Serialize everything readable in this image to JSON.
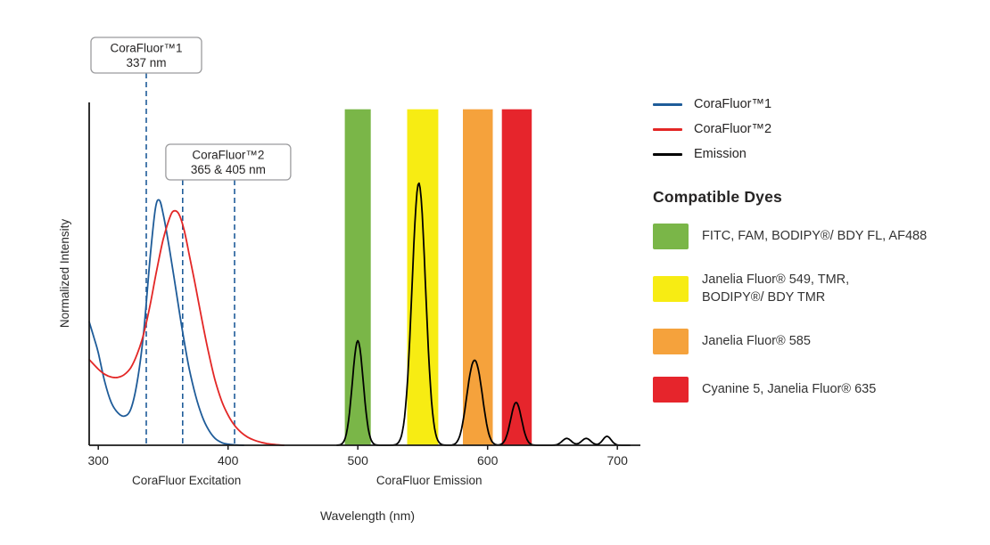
{
  "legend": {
    "items": [
      {
        "label": "CoraFluor™1",
        "color": "#1f5c99"
      },
      {
        "label": "CoraFluor™2",
        "color": "#e32726"
      },
      {
        "label": "Emission",
        "color": "#000000"
      }
    ]
  },
  "compatible_dyes": {
    "heading": "Compatible Dyes",
    "items": [
      {
        "color": "#7ab648",
        "label": "FITC, FAM, BODIPY®/ BDY FL, AF488"
      },
      {
        "color": "#f7ec13",
        "label": "Janelia Fluor® 549, TMR,\nBODIPY®/ BDY TMR"
      },
      {
        "color": "#f5a23c",
        "label": "Janelia Fluor® 585"
      },
      {
        "color": "#e6252c",
        "label": "Cyanine 5, Janelia Fluor® 635"
      }
    ]
  },
  "chart_data": {
    "type": "line",
    "title": "",
    "xlabel": "Wavelength (nm)",
    "ylabel": "Normalized Intensity",
    "xlim": [
      293,
      715
    ],
    "ylim": [
      0,
      1
    ],
    "grid": false,
    "x_ticks": [
      300,
      400,
      500,
      600,
      700
    ],
    "section_labels": [
      {
        "label": "CoraFluor Excitation",
        "center_nm": 368
      },
      {
        "label": "CoraFluor Emission",
        "center_nm": 555
      }
    ],
    "annotations": [
      {
        "line1": "CoraFluor™1",
        "line2": "337 nm",
        "lines_nm": [
          337
        ]
      },
      {
        "line1": "CoraFluor™2",
        "line2": "365 & 405 nm",
        "lines_nm": [
          365,
          405
        ]
      }
    ],
    "annotation_line_color": "#1f5c99",
    "bands": [
      {
        "name": "green",
        "range": [
          490,
          510
        ],
        "color": "#7ab648"
      },
      {
        "name": "yellow",
        "range": [
          538,
          562
        ],
        "color": "#f7ec13"
      },
      {
        "name": "orange",
        "range": [
          581,
          604
        ],
        "color": "#f5a23c"
      },
      {
        "name": "red",
        "range": [
          611,
          634
        ],
        "color": "#e6252c"
      }
    ],
    "series": [
      {
        "id": "corafluor1-excitation",
        "name": "CoraFluor™1",
        "color": "#1f5c99",
        "points": [
          [
            293,
            0.36
          ],
          [
            297,
            0.31
          ],
          [
            300,
            0.27
          ],
          [
            305,
            0.185
          ],
          [
            310,
            0.125
          ],
          [
            315,
            0.095
          ],
          [
            320,
            0.085
          ],
          [
            325,
            0.105
          ],
          [
            330,
            0.185
          ],
          [
            335,
            0.33
          ],
          [
            340,
            0.55
          ],
          [
            344,
            0.69
          ],
          [
            347,
            0.715
          ],
          [
            350,
            0.675
          ],
          [
            355,
            0.57
          ],
          [
            360,
            0.45
          ],
          [
            365,
            0.33
          ],
          [
            370,
            0.225
          ],
          [
            375,
            0.145
          ],
          [
            380,
            0.085
          ],
          [
            385,
            0.045
          ],
          [
            390,
            0.02
          ],
          [
            395,
            0.008
          ],
          [
            400,
            0.003
          ],
          [
            406,
            0.001
          ],
          [
            412,
            0
          ]
        ]
      },
      {
        "id": "corafluor2-excitation",
        "name": "CoraFluor™2",
        "color": "#e32726",
        "points": [
          [
            293,
            0.25
          ],
          [
            300,
            0.222
          ],
          [
            305,
            0.207
          ],
          [
            310,
            0.199
          ],
          [
            315,
            0.198
          ],
          [
            320,
            0.206
          ],
          [
            325,
            0.226
          ],
          [
            330,
            0.266
          ],
          [
            335,
            0.325
          ],
          [
            340,
            0.41
          ],
          [
            345,
            0.51
          ],
          [
            350,
            0.6
          ],
          [
            355,
            0.663
          ],
          [
            358,
            0.683
          ],
          [
            362,
            0.675
          ],
          [
            366,
            0.63
          ],
          [
            370,
            0.558
          ],
          [
            375,
            0.463
          ],
          [
            380,
            0.363
          ],
          [
            385,
            0.27
          ],
          [
            390,
            0.19
          ],
          [
            395,
            0.13
          ],
          [
            400,
            0.088
          ],
          [
            405,
            0.058
          ],
          [
            410,
            0.038
          ],
          [
            415,
            0.024
          ],
          [
            420,
            0.015
          ],
          [
            425,
            0.009
          ],
          [
            430,
            0.005
          ],
          [
            436,
            0.002
          ],
          [
            443,
            0
          ]
        ]
      },
      {
        "id": "emission",
        "name": "Emission",
        "color": "#000000",
        "range": [
          484,
          710
        ],
        "peaks": [
          {
            "center": 500,
            "height": 0.305,
            "sigma": 4.2
          },
          {
            "center": 547,
            "height": 0.765,
            "sigma": 5.2
          },
          {
            "center": 587,
            "height": 0.155,
            "sigma": 4.5
          },
          {
            "center": 593,
            "height": 0.155,
            "sigma": 4.5
          },
          {
            "center": 622,
            "height": 0.125,
            "sigma": 4.2
          },
          {
            "center": 661,
            "height": 0.02,
            "sigma": 3.5
          },
          {
            "center": 676,
            "height": 0.02,
            "sigma": 3.5
          },
          {
            "center": 692,
            "height": 0.026,
            "sigma": 3.2
          }
        ]
      }
    ]
  }
}
